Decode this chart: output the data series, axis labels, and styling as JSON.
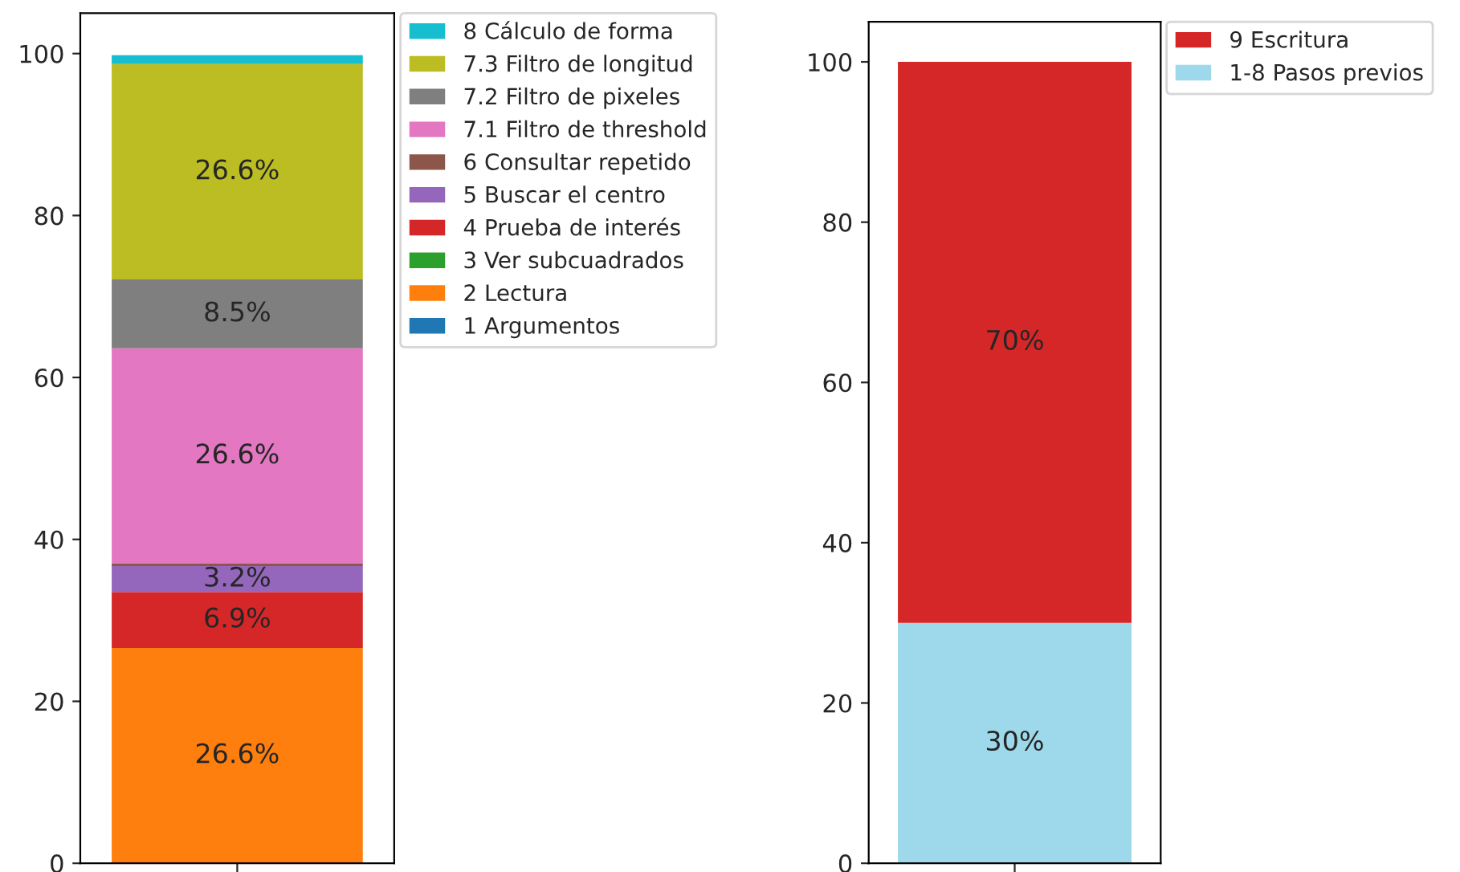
{
  "chart_data": [
    {
      "type": "bar",
      "stacked": true,
      "categories": [
        null
      ],
      "ylim": [
        0,
        105
      ],
      "yticks": [
        0,
        20,
        40,
        60,
        80,
        100
      ],
      "legend": "top right",
      "grid": false,
      "series": [
        {
          "name": "1 Argumentos",
          "color": "#1f77b4",
          "values": [
            0
          ],
          "value_labels": [
            null
          ]
        },
        {
          "name": "2 Lectura",
          "color": "#ff7f0e",
          "values": [
            26.6
          ],
          "value_labels": [
            "26.6%"
          ]
        },
        {
          "name": "3 Ver subcuadrados",
          "color": "#2ca02c",
          "values": [
            0
          ],
          "value_labels": [
            null
          ]
        },
        {
          "name": "4 Prueba de interés",
          "color": "#d62728",
          "values": [
            6.9
          ],
          "value_labels": [
            "6.9%"
          ]
        },
        {
          "name": "5 Buscar el centro",
          "color": "#9467bd",
          "values": [
            3.2
          ],
          "value_labels": [
            "3.2%"
          ]
        },
        {
          "name": "6 Consultar repetido",
          "color": "#8c564b",
          "values": [
            0.3
          ],
          "value_labels": [
            null
          ]
        },
        {
          "name": "7.1 Filtro de threshold",
          "color": "#e377c2",
          "values": [
            26.6
          ],
          "value_labels": [
            "26.6%"
          ]
        },
        {
          "name": "7.2 Filtro de pixeles",
          "color": "#7f7f7f",
          "values": [
            8.5
          ],
          "value_labels": [
            "8.5%"
          ]
        },
        {
          "name": "7.3 Filtro de longitud",
          "color": "#bcbd22",
          "values": [
            26.6
          ],
          "value_labels": [
            "26.6%"
          ]
        },
        {
          "name": "8 Cálculo de forma",
          "color": "#17becf",
          "values": [
            1.1
          ],
          "value_labels": [
            null
          ]
        }
      ]
    },
    {
      "type": "bar",
      "stacked": true,
      "categories": [
        null
      ],
      "ylim": [
        0,
        105
      ],
      "yticks": [
        0,
        20,
        40,
        60,
        80,
        100
      ],
      "legend": "top right",
      "grid": false,
      "series": [
        {
          "name": "1-8 Pasos previos",
          "color": "#9dd9ea",
          "values": [
            30
          ],
          "value_labels": [
            "30%"
          ]
        },
        {
          "name": "9 Escritura",
          "color": "#d62728",
          "values": [
            70
          ],
          "value_labels": [
            "70%"
          ]
        }
      ]
    }
  ]
}
